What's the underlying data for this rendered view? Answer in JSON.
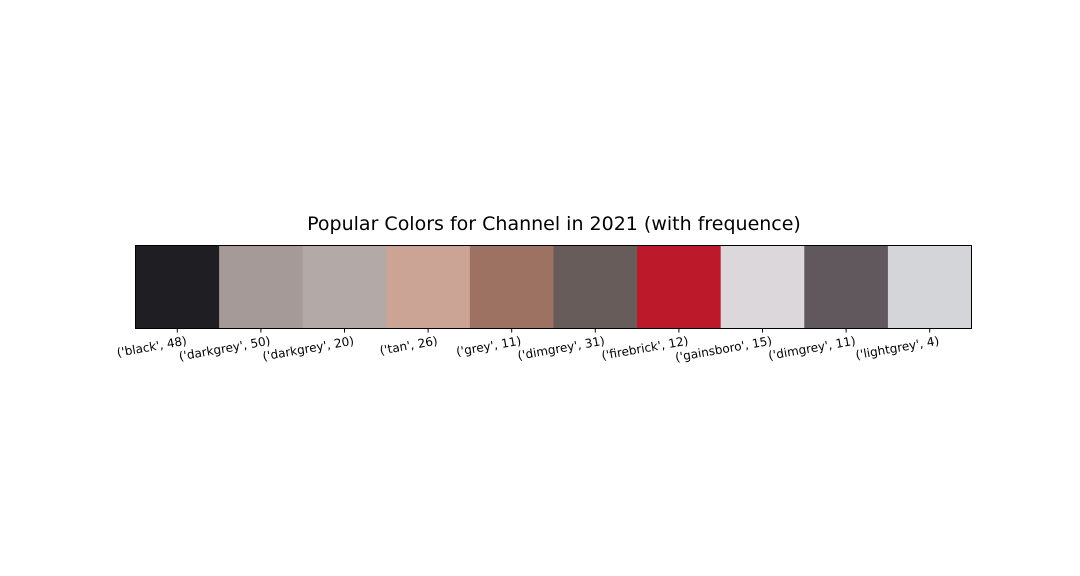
{
  "chart_data": {
    "type": "bar",
    "title": "Popular Colors for Channel in 2021 (with frequence)",
    "xlabel": "",
    "ylabel": "",
    "grid": false,
    "categories": [
      "('black', 48)",
      "('darkgrey', 50)",
      "('darkgrey', 20)",
      "('tan', 26)",
      "('grey', 11)",
      "('dimgrey', 31)",
      "('firebrick', 12)",
      "('gainsboro', 15)",
      "('dimgrey', 11)",
      "('lightgrey', 4)"
    ],
    "swatch_colors": [
      "#1f1e22",
      "#a59a98",
      "#b3a9a6",
      "#cba495",
      "#9e7263",
      "#675c59",
      "#bc192b",
      "#dcd7db",
      "#60585c",
      "#d4d5d9"
    ]
  }
}
